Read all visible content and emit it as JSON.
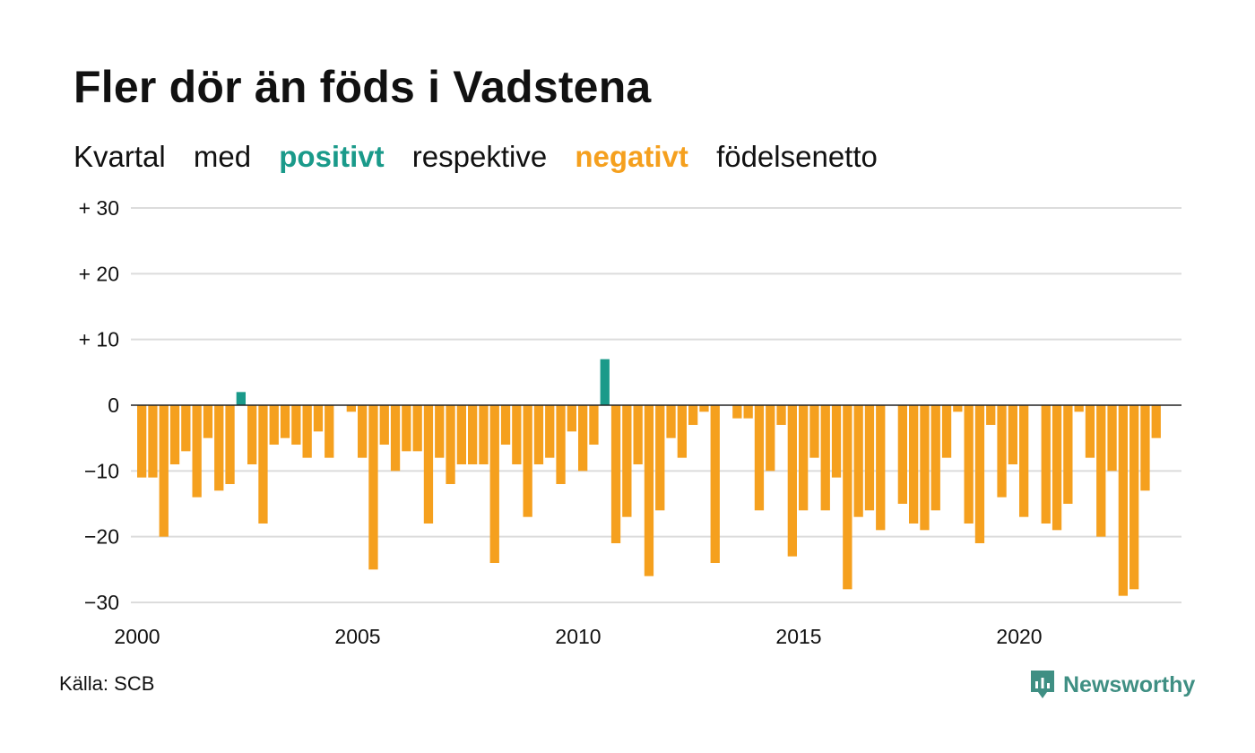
{
  "chart_data": {
    "type": "bar",
    "title": "Fler dör än föds i Vadstena",
    "subtitle": {
      "part1": "Kvartal",
      "part2": "med",
      "positive": "positivt",
      "part3": "respektive",
      "negative": "negativt",
      "part4": "födelsenetto"
    },
    "xlabel": "",
    "ylabel": "",
    "x_start": 2000,
    "quarters_per_year": 4,
    "ylim": [
      -30,
      30
    ],
    "yticks": [
      {
        "value": 30,
        "label": "+ 30"
      },
      {
        "value": 20,
        "label": "+ 20"
      },
      {
        "value": 10,
        "label": "+ 10"
      },
      {
        "value": 0,
        "label": "0"
      },
      {
        "value": -10,
        "label": "−10"
      },
      {
        "value": -20,
        "label": "−20"
      },
      {
        "value": -30,
        "label": "−30"
      }
    ],
    "xticks": [
      {
        "value": 2000,
        "label": "2000"
      },
      {
        "value": 2005,
        "label": "2005"
      },
      {
        "value": 2010,
        "label": "2010"
      },
      {
        "value": 2015,
        "label": "2015"
      },
      {
        "value": 2020,
        "label": "2020"
      }
    ],
    "grid": true,
    "colors": {
      "positive": "#1a9a8a",
      "negative": "#f5a01e",
      "grid": "#dcdcdc",
      "zero_line": "#222222"
    },
    "values": [
      -11,
      -11,
      -20,
      -9,
      -7,
      -14,
      -5,
      -13,
      -12,
      2,
      -9,
      -18,
      -6,
      -5,
      -6,
      -8,
      -4,
      -8,
      0,
      -1,
      -8,
      -25,
      -6,
      -10,
      -7,
      -7,
      -18,
      -8,
      -12,
      -9,
      -9,
      -9,
      -24,
      -6,
      -9,
      -17,
      -9,
      -8,
      -12,
      -4,
      -10,
      -6,
      7,
      -21,
      -17,
      -9,
      -26,
      -16,
      -5,
      -8,
      -3,
      -1,
      -24,
      0,
      -2,
      -2,
      -16,
      -10,
      -3,
      -23,
      -16,
      -8,
      -16,
      -11,
      -28,
      -17,
      -16,
      -19,
      0,
      -15,
      -18,
      -19,
      -16,
      -8,
      -1,
      -18,
      -21,
      -3,
      -14,
      -9,
      -17,
      0,
      -18,
      -19,
      -15,
      -1,
      -8,
      -20,
      -10,
      -29,
      -28,
      -13,
      -5
    ]
  },
  "source": "Källa: SCB",
  "brand": {
    "name": "Newsworthy",
    "icon": "newsworthy-logo-icon"
  }
}
